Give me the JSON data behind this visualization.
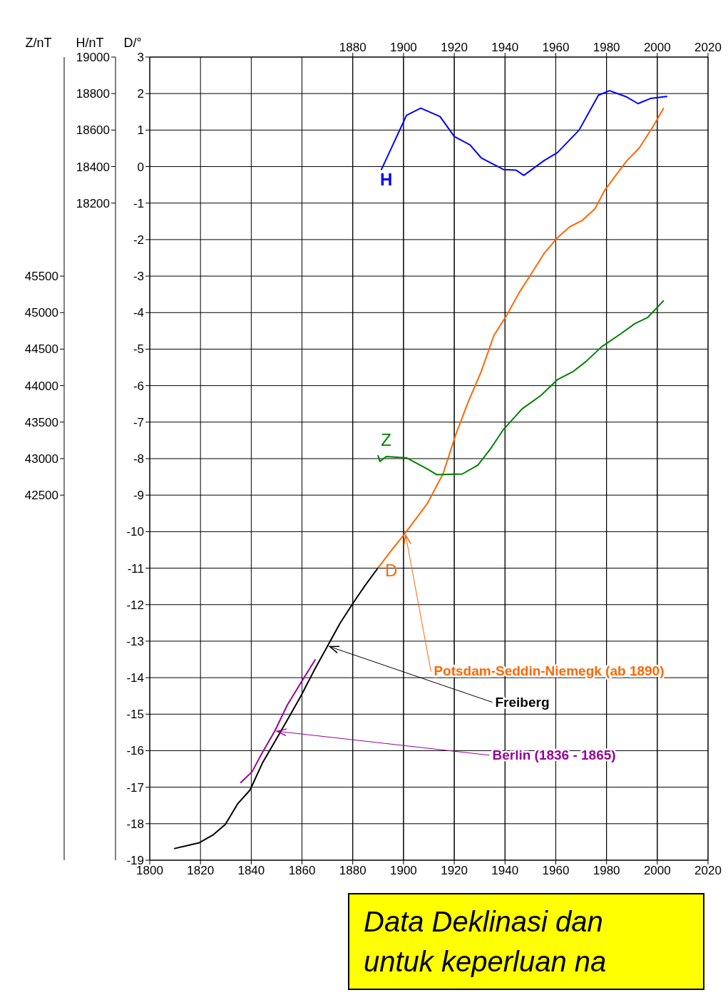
{
  "chart_data": {
    "type": "line",
    "xlim": [
      1800,
      2020
    ],
    "xticks": [
      1800,
      1820,
      1840,
      1860,
      1880,
      1900,
      1920,
      1940,
      1960,
      1980,
      2000,
      2020
    ],
    "x2lim": [
      1800,
      2020
    ],
    "x2ticks": [
      1880,
      1900,
      1920,
      1940,
      1960,
      1980,
      2000,
      2020
    ],
    "ylabel": "D/°",
    "ylim": [
      -19,
      3
    ],
    "yticks": [
      -19,
      -18,
      -17,
      -16,
      -15,
      -14,
      -13,
      -12,
      -11,
      -10,
      -9,
      -8,
      -7,
      -6,
      -5,
      -4,
      -3,
      -2,
      -1,
      0,
      1,
      2,
      3
    ],
    "y2label": "H/nT",
    "y2lim": [
      14600,
      19000
    ],
    "y2ticks": [
      18200,
      18400,
      18600,
      18800,
      19000
    ],
    "y3label": "Z/nT",
    "y3lim": [
      37500,
      48500
    ],
    "y3ticks": [
      42500,
      43000,
      43500,
      44000,
      44500,
      45000,
      45500
    ],
    "grid": true,
    "marker": "none",
    "line_style": "solid",
    "series": [
      {
        "name": "Freiberg",
        "color": "#000000",
        "x": [
          1809.8,
          1819.6,
          1824.9,
          1829.8,
          1834.6,
          1839.5,
          1844.4,
          1849.3,
          1854.2,
          1859.5,
          1864.8,
          1870.1,
          1875,
          1879.9,
          1884.8,
          1890.1
        ],
        "values": [
          -18.68,
          -18.52,
          -18.31,
          -18.02,
          -17.46,
          -17.08,
          -16.34,
          -15.75,
          -15.16,
          -14.51,
          -13.8,
          -13.13,
          -12.51,
          -11.98,
          -11.48,
          -10.98
        ]
      },
      {
        "name": "Potsdam-Seddin-Niemegk (ab 1890)",
        "color": "#ff6600",
        "x": [
          1890.1,
          1895.4,
          1900.7,
          1909.4,
          1915.6,
          1920.6,
          1925.6,
          1930.6,
          1935.6,
          1940.6,
          1945.6,
          1950.6,
          1955.5,
          1960.5,
          1965.5,
          1970.5,
          1975.5,
          1979.2,
          1983,
          1988,
          1992.9,
          1998,
          2002.4
        ],
        "values": [
          -10.98,
          -10.5,
          -10.04,
          -9.23,
          -8.41,
          -7.34,
          -6.43,
          -5.62,
          -4.63,
          -4.08,
          -3.45,
          -2.91,
          -2.37,
          -1.96,
          -1.65,
          -1.47,
          -1.15,
          -0.66,
          -0.3,
          0.16,
          0.51,
          1.06,
          1.59
        ]
      },
      {
        "name": "Berlin (1836 - 1865)",
        "color": "#990099",
        "x": [
          1835.9,
          1840.3,
          1844.4,
          1849.3,
          1854.2,
          1859.9,
          1865.2
        ],
        "values": [
          -16.87,
          -16.58,
          -16.05,
          -15.46,
          -14.75,
          -14.1,
          -13.51
        ]
      },
      {
        "name": "H",
        "color": "#0000ff",
        "axis": "y2",
        "x": [
          1891.3,
          1901.2,
          1906.8,
          1914.4,
          1920,
          1926.2,
          1930.6,
          1939.4,
          1944.3,
          1947.4,
          1955.5,
          1960.6,
          1969.2,
          1976.8,
          1981.2,
          1988,
          1992.4,
          1997.3,
          2003.7
        ],
        "values": [
          18384,
          18681,
          18720,
          18674,
          18565,
          18519,
          18448,
          18384,
          18381,
          18352,
          18434,
          18476,
          18600,
          18791,
          18816,
          18781,
          18745,
          18773,
          18784
        ]
      },
      {
        "name": "Z",
        "color": "#008000",
        "axis": "y3",
        "x": [
          1890,
          1890.7,
          1893.2,
          1901.2,
          1909.3,
          1913.2,
          1923.2,
          1929.3,
          1934.2,
          1939.4,
          1946.7,
          1954.3,
          1960.6,
          1966.7,
          1971.9,
          1978,
          1985.6,
          1991.2,
          1996.1,
          2002.4
        ],
        "values": [
          43040,
          42960,
          43030,
          43010,
          42860,
          42780,
          42790,
          42910,
          43130,
          43400,
          43680,
          43870,
          44080,
          44190,
          44330,
          44530,
          44710,
          44850,
          44930,
          45160
        ]
      }
    ],
    "annotations": [
      "D",
      "Data Deklinasi dan",
      "untuk keperluan na"
    ]
  }
}
